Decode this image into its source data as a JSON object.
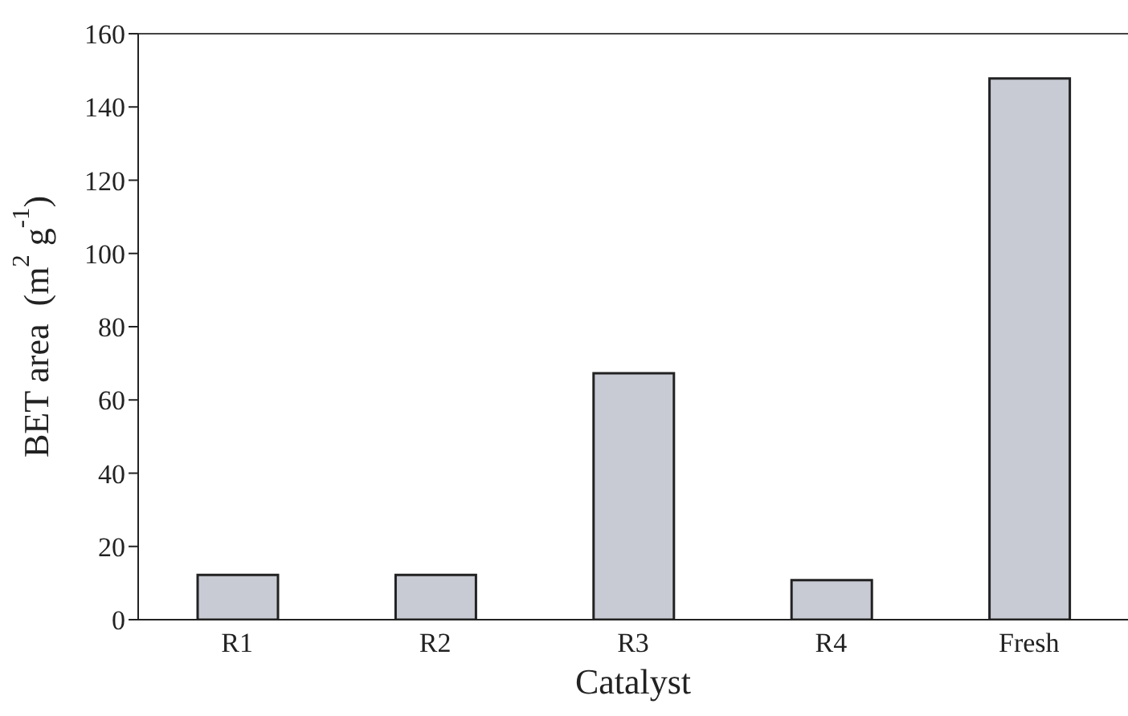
{
  "chart_data": {
    "type": "bar",
    "xlabel": "Catalyst",
    "ylabel": "BET area  (m$^{2}$ g$^{-1}$)",
    "categories": [
      "R1",
      "R2",
      "R3",
      "R4",
      "Fresh"
    ],
    "values": [
      12.2,
      12.2,
      67.3,
      10.8,
      147.8
    ],
    "color": "#c8cbd3",
    "ylim": [
      0,
      160
    ],
    "yticks": [
      0,
      20,
      40,
      60,
      80,
      100,
      120,
      140,
      160
    ]
  }
}
